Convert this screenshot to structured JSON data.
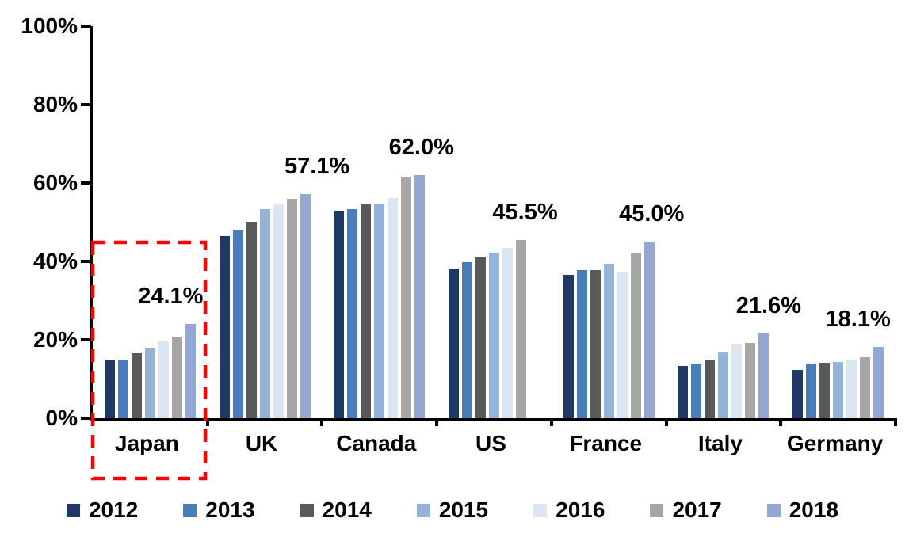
{
  "chart_data": {
    "type": "bar",
    "title": "",
    "xlabel": "",
    "ylabel": "",
    "ylim": [
      0,
      100
    ],
    "grid": false,
    "legend_position": "bottom",
    "y_tick_labels": [
      "0%",
      "20%",
      "40%",
      "60%",
      "80%",
      "100%"
    ],
    "series_years": [
      "2012",
      "2013",
      "2014",
      "2015",
      "2016",
      "2017",
      "2018"
    ],
    "series_colors": [
      "#1F3864",
      "#4A7EBB",
      "#595959",
      "#95B3D7",
      "#DCE6F2",
      "#A6A6A6",
      "#93A7D3"
    ],
    "categories": [
      "Japan",
      "UK",
      "Canada",
      "US",
      "France",
      "Italy",
      "Germany"
    ],
    "groups": [
      {
        "name": "Japan",
        "values": [
          14.8,
          14.9,
          16.6,
          17.9,
          19.7,
          20.9,
          24.1
        ],
        "annotation": "24.1%",
        "highlighted": true
      },
      {
        "name": "UK",
        "values": [
          46.5,
          48.0,
          50.1,
          53.4,
          54.8,
          55.9,
          57.1
        ],
        "annotation": "57.1%",
        "highlighted": false
      },
      {
        "name": "Canada",
        "values": [
          53.0,
          53.4,
          54.8,
          54.6,
          56.2,
          61.7,
          62.0
        ],
        "annotation": "62.0%",
        "highlighted": false
      },
      {
        "name": "US",
        "values": [
          38.1,
          39.9,
          41.1,
          42.2,
          43.5,
          45.5,
          null
        ],
        "annotation": "45.5%",
        "highlighted": false
      },
      {
        "name": "France",
        "values": [
          36.5,
          37.8,
          37.7,
          39.4,
          37.4,
          42.3,
          45.0
        ],
        "annotation": "45.0%",
        "highlighted": false
      },
      {
        "name": "Italy",
        "values": [
          13.3,
          14.0,
          15.0,
          16.7,
          18.9,
          19.1,
          21.6
        ],
        "annotation": "21.6%",
        "highlighted": false
      },
      {
        "name": "Germany",
        "values": [
          12.4,
          13.9,
          14.1,
          14.3,
          15.0,
          15.6,
          18.1
        ],
        "annotation": "18.1%",
        "highlighted": false
      }
    ],
    "highlight_box": {
      "target": "Japan",
      "color": "#FF0000",
      "style": "dashed"
    },
    "axis_color": "#000000",
    "text_color": "#000000"
  }
}
